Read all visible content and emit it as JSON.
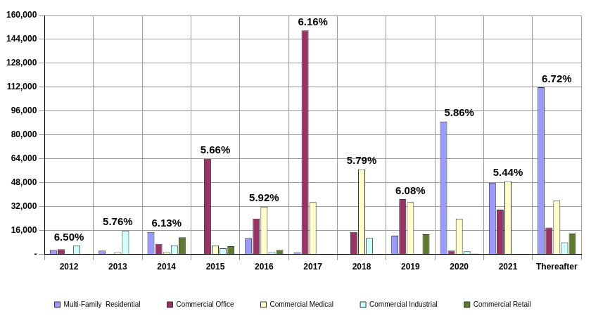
{
  "chart_data": {
    "type": "bar",
    "categories": [
      "2012",
      "2013",
      "2014",
      "2015",
      "2016",
      "2017",
      "2018",
      "2019",
      "2020",
      "2021",
      "Thereafter"
    ],
    "series": [
      {
        "name": "Multi-Family  Residential",
        "color": "#9999ff",
        "values": [
          3000,
          2500,
          15000,
          0,
          11000,
          1500,
          0,
          12500,
          89000,
          48000,
          112000
        ]
      },
      {
        "name": "Commercial Office",
        "color": "#993366",
        "values": [
          3500,
          0,
          7000,
          64000,
          24000,
          150000,
          15000,
          37000,
          2500,
          30000,
          18000
        ]
      },
      {
        "name": "Commercial Medical",
        "color": "#ffffcc",
        "values": [
          0,
          1500,
          1500,
          6000,
          32000,
          35000,
          57000,
          35000,
          24000,
          49000,
          36000
        ]
      },
      {
        "name": "Commercial Industrial",
        "color": "#ccffff",
        "values": [
          6000,
          16000,
          6000,
          4000,
          1500,
          0,
          11000,
          0,
          2000,
          0,
          8000
        ]
      },
      {
        "name": "Commercial Retail",
        "color": "#5b7a2a",
        "values": [
          0,
          0,
          11500,
          5500,
          3000,
          0,
          0,
          13500,
          500,
          0,
          14000
        ]
      }
    ],
    "annotations": [
      {
        "category": "2012",
        "text": "6.50%"
      },
      {
        "category": "2013",
        "text": "5.76%"
      },
      {
        "category": "2014",
        "text": "6.13%"
      },
      {
        "category": "2015",
        "text": "5.66%"
      },
      {
        "category": "2016",
        "text": "5.92%"
      },
      {
        "category": "2017",
        "text": "6.16%"
      },
      {
        "category": "2018",
        "text": "5.79%"
      },
      {
        "category": "2019",
        "text": "6.08%"
      },
      {
        "category": "2020",
        "text": "5.86%"
      },
      {
        "category": "2021",
        "text": "5.44%"
      },
      {
        "category": "Thereafter",
        "text": "6.72%"
      }
    ],
    "ylim": [
      0,
      160000
    ],
    "yticks": [
      {
        "value": 0,
        "label": "-"
      },
      {
        "value": 16000,
        "label": "16,000"
      },
      {
        "value": 32000,
        "label": "32,000"
      },
      {
        "value": 48000,
        "label": "48,000"
      },
      {
        "value": 64000,
        "label": "64,000"
      },
      {
        "value": 80000,
        "label": "80,000"
      },
      {
        "value": 96000,
        "label": "96,000"
      },
      {
        "value": 112000,
        "label": "112,000"
      },
      {
        "value": 128000,
        "label": "128,000"
      },
      {
        "value": 144000,
        "label": "144,000"
      },
      {
        "value": 160000,
        "label": "160,000"
      }
    ],
    "grid": true,
    "legend": "bottom"
  }
}
